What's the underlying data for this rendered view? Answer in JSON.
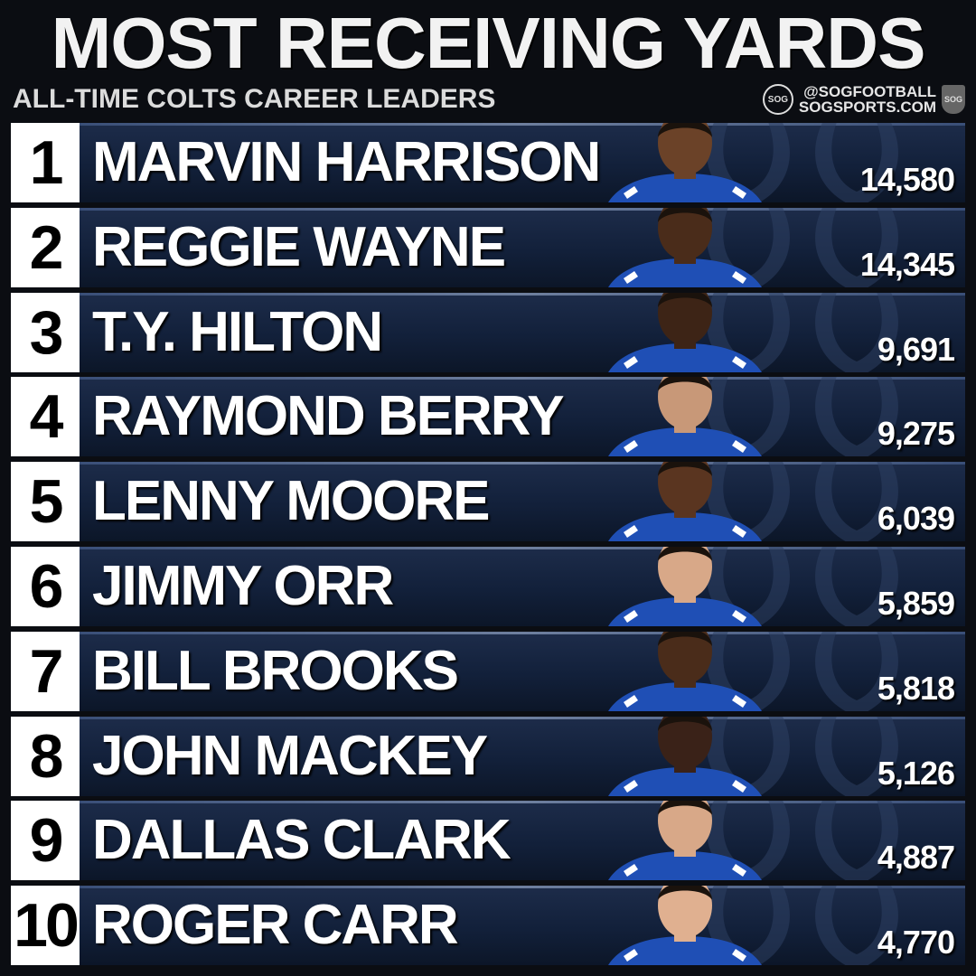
{
  "header": {
    "title": "MOST RECEIVING YARDS",
    "subtitle": "ALL-TIME COLTS CAREER LEADERS",
    "brand_logo": "SOG",
    "brand_handle": "@SOGFOOTBALL",
    "brand_site": "SOGSPORTS.COM",
    "brand_shield": "SOG"
  },
  "colors": {
    "background": "#0b0d12",
    "bar": "#12203a",
    "rank_box": "#ffffff",
    "jersey": "#1f4fb5",
    "text": "#ffffff"
  },
  "chart_data": {
    "type": "table",
    "title": "MOST RECEIVING YARDS",
    "subtitle": "ALL-TIME COLTS CAREER LEADERS",
    "columns": [
      "rank",
      "player",
      "yards"
    ],
    "rows": [
      {
        "rank": "1",
        "player": "MARVIN HARRISON",
        "yards": "14,580",
        "value": 14580
      },
      {
        "rank": "2",
        "player": "REGGIE WAYNE",
        "yards": "14,345",
        "value": 14345
      },
      {
        "rank": "3",
        "player": "T.Y. HILTON",
        "yards": "9,691",
        "value": 9691
      },
      {
        "rank": "4",
        "player": "RAYMOND BERRY",
        "yards": "9,275",
        "value": 9275
      },
      {
        "rank": "5",
        "player": "LENNY MOORE",
        "yards": "6,039",
        "value": 6039
      },
      {
        "rank": "6",
        "player": "JIMMY ORR",
        "yards": "5,859",
        "value": 5859
      },
      {
        "rank": "7",
        "player": "BILL BROOKS",
        "yards": "5,818",
        "value": 5818
      },
      {
        "rank": "8",
        "player": "JOHN MACKEY",
        "yards": "5,126",
        "value": 5126
      },
      {
        "rank": "9",
        "player": "DALLAS CLARK",
        "yards": "4,887",
        "value": 4887
      },
      {
        "rank": "10",
        "player": "ROGER CARR",
        "yards": "4,770",
        "value": 4770
      }
    ]
  }
}
